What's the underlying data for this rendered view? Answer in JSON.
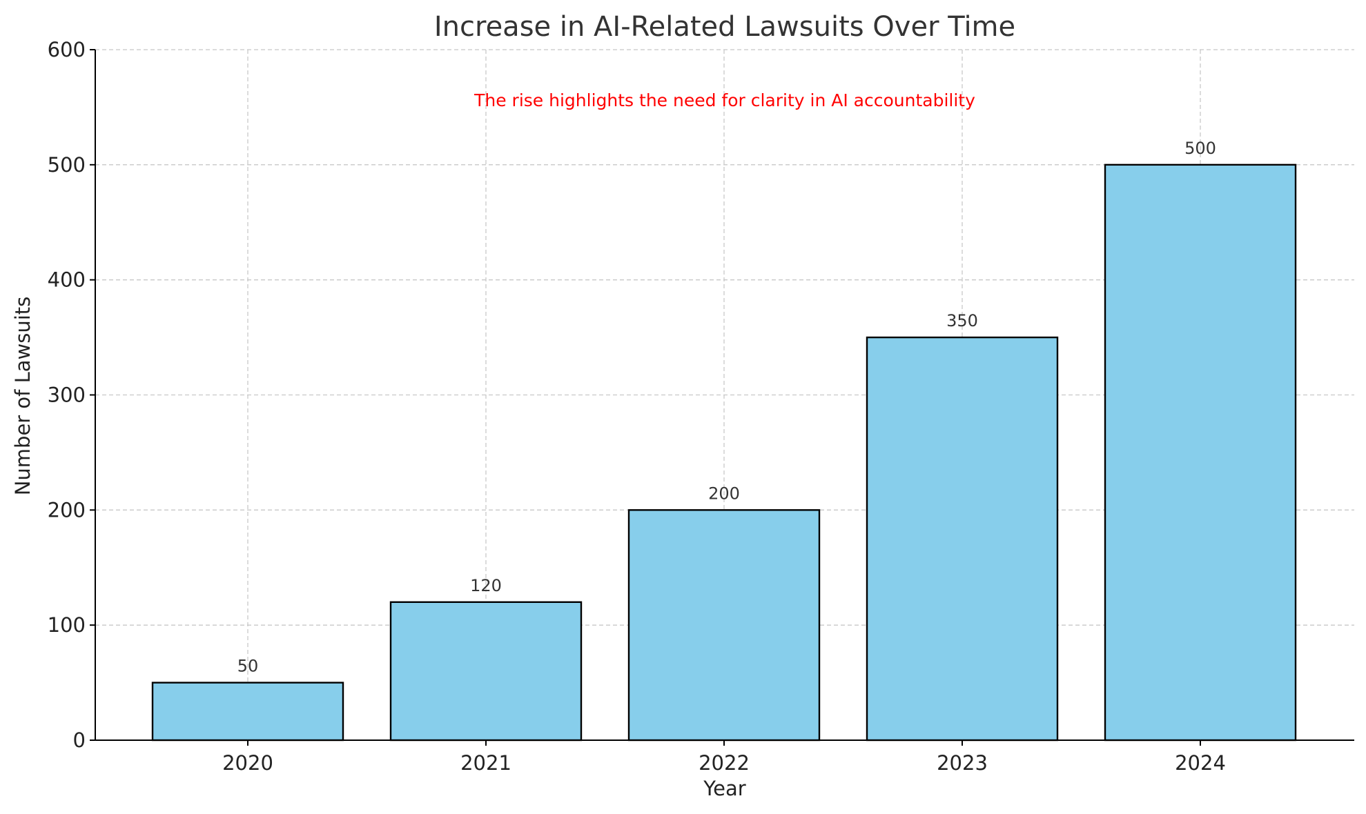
{
  "chart_data": {
    "type": "bar",
    "title": "Increase in AI-Related Lawsuits Over Time",
    "xlabel": "Year",
    "ylabel": "Number of Lawsuits",
    "categories": [
      "2020",
      "2021",
      "2022",
      "2023",
      "2024"
    ],
    "values": [
      50,
      120,
      200,
      350,
      500
    ],
    "value_labels": [
      "50",
      "120",
      "200",
      "350",
      "500"
    ],
    "ylim": [
      0,
      600
    ],
    "yticks": [
      0,
      100,
      200,
      300,
      400,
      500,
      600
    ],
    "ytick_labels": [
      "0",
      "100",
      "200",
      "300",
      "400",
      "500",
      "600"
    ],
    "grid": true,
    "annotation": {
      "text": "The rise highlights the need for clarity in AI accountability",
      "color": "#ff0000"
    },
    "bar_color": "#87ceeb",
    "edge_color": "#000000"
  }
}
